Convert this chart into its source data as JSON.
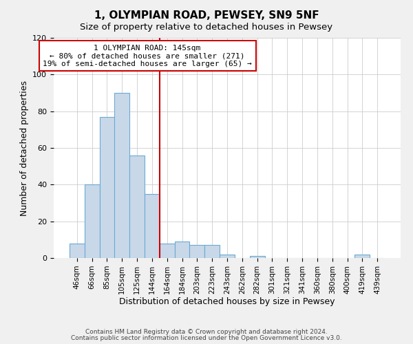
{
  "title": "1, OLYMPIAN ROAD, PEWSEY, SN9 5NF",
  "subtitle": "Size of property relative to detached houses in Pewsey",
  "xlabel": "Distribution of detached houses by size in Pewsey",
  "ylabel": "Number of detached properties",
  "bar_labels": [
    "46sqm",
    "66sqm",
    "85sqm",
    "105sqm",
    "125sqm",
    "144sqm",
    "164sqm",
    "184sqm",
    "203sqm",
    "223sqm",
    "243sqm",
    "262sqm",
    "282sqm",
    "301sqm",
    "321sqm",
    "341sqm",
    "360sqm",
    "380sqm",
    "400sqm",
    "419sqm",
    "439sqm"
  ],
  "bar_values": [
    8,
    40,
    77,
    90,
    56,
    35,
    8,
    9,
    7,
    7,
    2,
    0,
    1,
    0,
    0,
    0,
    0,
    0,
    0,
    2,
    0
  ],
  "bar_color": "#c8d8e8",
  "bar_edge_color": "#6aaad4",
  "ylim": [
    0,
    120
  ],
  "yticks": [
    0,
    20,
    40,
    60,
    80,
    100,
    120
  ],
  "vline_x_idx": 5.5,
  "vline_color": "#cc0000",
  "annotation_title": "1 OLYMPIAN ROAD: 145sqm",
  "annotation_line1": "← 80% of detached houses are smaller (271)",
  "annotation_line2": "19% of semi-detached houses are larger (65) →",
  "annotation_box_color": "#ffffff",
  "annotation_box_edge": "#cc0000",
  "footnote1": "Contains HM Land Registry data © Crown copyright and database right 2024.",
  "footnote2": "Contains public sector information licensed under the Open Government Licence v3.0.",
  "background_color": "#f0f0f0",
  "plot_background": "#ffffff",
  "grid_color": "#cccccc"
}
